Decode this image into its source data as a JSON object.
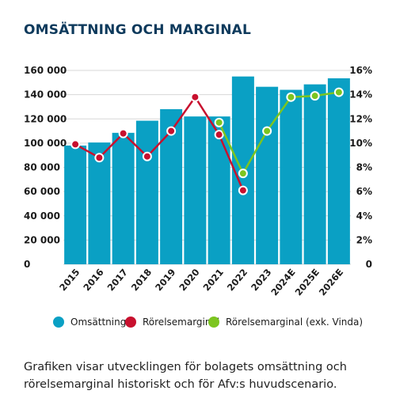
{
  "chart_data": {
    "type": "bar",
    "title": "OMSÄTTNING OCH MARGINAL",
    "categories": [
      "2015",
      "2016",
      "2017",
      "2018",
      "2019",
      "2020",
      "2021",
      "2022",
      "2023",
      "2024E",
      "2025E",
      "2026E"
    ],
    "y_left": {
      "ylim": [
        0,
        160000
      ],
      "ticks": [
        "0",
        "20 000",
        "40 000",
        "60 000",
        "80 000",
        "100 000",
        "120 000",
        "140 000",
        "160 000"
      ]
    },
    "y_right": {
      "ylim": [
        0,
        16
      ],
      "ticks": [
        "0",
        "2%",
        "4%",
        "6%",
        "8%",
        "10%",
        "12%",
        "14%",
        "16%"
      ]
    },
    "series": [
      {
        "name": "Omsättning",
        "type": "bar",
        "axis": "left",
        "color": "#0aa0c4",
        "values": [
          98000,
          100500,
          108500,
          118500,
          128000,
          122000,
          122000,
          155000,
          146500,
          144000,
          148500,
          153500
        ]
      },
      {
        "name": "Rörelsemarginal",
        "type": "line",
        "axis": "right",
        "color": "#c8102e",
        "values": [
          9.9,
          8.8,
          10.8,
          8.9,
          11.0,
          13.8,
          10.7,
          6.1,
          null,
          null,
          null,
          null
        ]
      },
      {
        "name": "Rörelsemarginal (exk. Vinda)",
        "type": "line",
        "axis": "right",
        "color": "#7cc520",
        "values": [
          null,
          null,
          null,
          null,
          null,
          null,
          11.7,
          7.5,
          11.0,
          13.8,
          13.9,
          14.2
        ]
      }
    ],
    "legend_position": "bottom",
    "grid": "horizontal"
  },
  "caption": "Grafiken visar utvecklingen för bolagets omsättning och rörelsemarginal historiskt och för Afv:s huvudscenario."
}
